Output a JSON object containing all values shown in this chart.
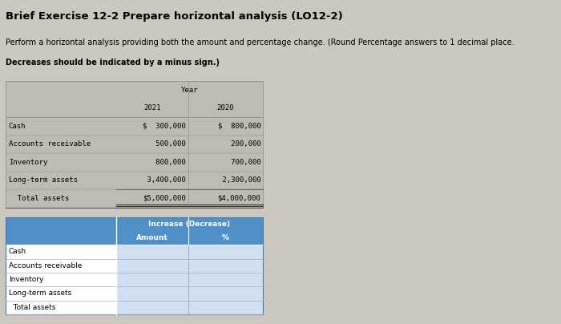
{
  "title": "Brief Exercise 12-2 Prepare horizontal analysis (LO12-2)",
  "subtitle_normal": "Perform a horizontal analysis providing both the amount and percentage change. (Round Percentage answers to 1 decimal place.",
  "subtitle_bold": "Decreases should be indicated by a minus sign.)",
  "background_color": "#ccc8c0",
  "table1": {
    "header": "Year",
    "col_headers": [
      "2021",
      "2020"
    ],
    "rows": [
      [
        "Cash",
        "$  300,000",
        "$  800,000"
      ],
      [
        "Accounts receivable",
        "   500,000",
        "   200,000"
      ],
      [
        "Inventory",
        "   800,000",
        "   700,000"
      ],
      [
        "Long-term assets",
        " 3,400,000",
        " 2,300,000"
      ],
      [
        "  Total assets",
        "$5,000,000",
        "$4,000,000"
      ]
    ],
    "bg_color": "#bfbab2"
  },
  "table2": {
    "header": "Increase (Decrease)",
    "col_headers": [
      "Amount",
      "%"
    ],
    "rows": [
      [
        "Cash",
        "",
        ""
      ],
      [
        "Accounts receivable",
        "",
        ""
      ],
      [
        "Inventory",
        "",
        ""
      ],
      [
        "Long-term assets",
        "",
        ""
      ],
      [
        "  Total assets",
        "",
        ""
      ]
    ],
    "header_bg": "#4f90c8",
    "row_bg": "#d0e0f0",
    "label_bg": "#f0f0f0"
  },
  "title_fontsize": 9.5,
  "body_fontsize": 7,
  "table_fontsize": 6.5
}
